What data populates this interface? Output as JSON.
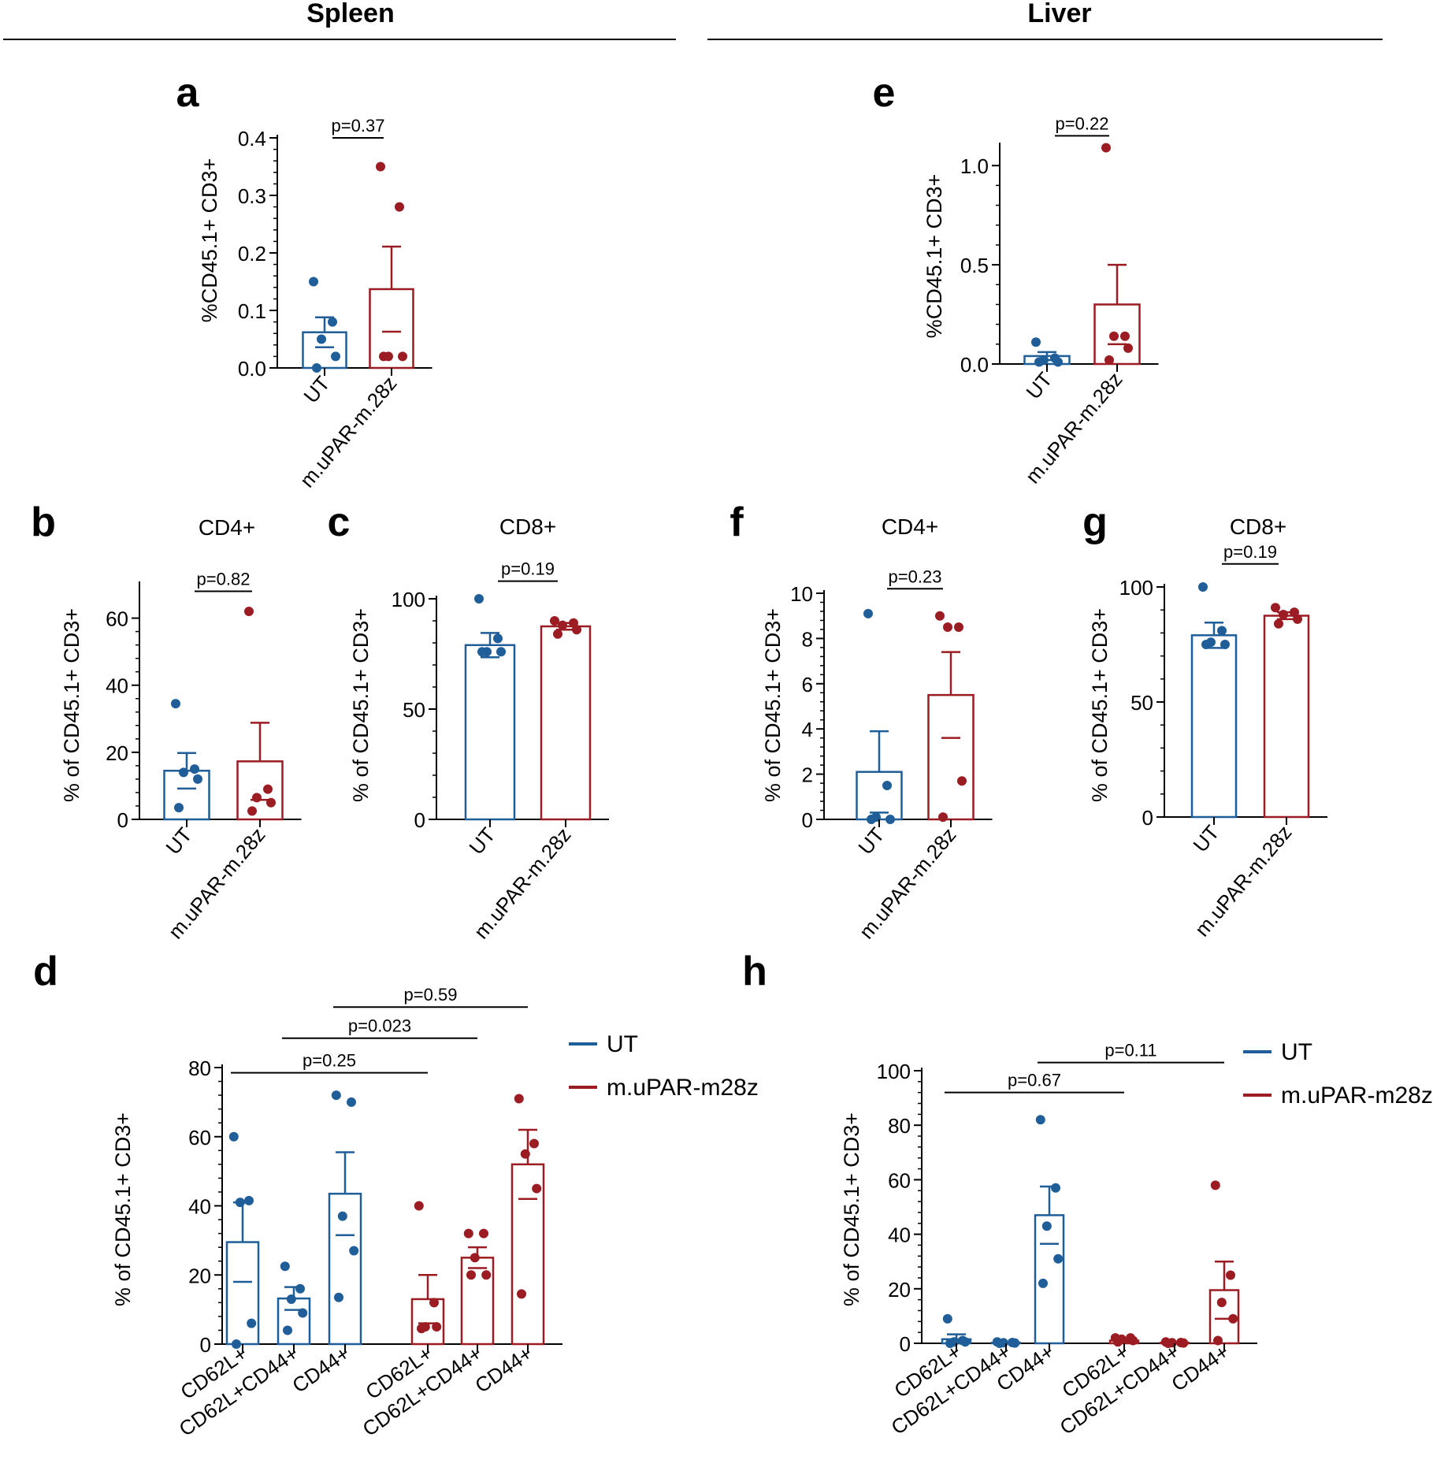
{
  "sections": {
    "spleen": "Spleen",
    "liver": "Liver"
  },
  "colors": {
    "ut": "#1f5e99",
    "car": "#9b1c22",
    "axis": "#000000"
  },
  "chart_data": [
    {
      "panel": "a",
      "type": "bar",
      "subtitle": "",
      "ylabel": "%CD45.1+ CD3+",
      "categories": [
        "UT",
        "m.uPAR-m.28z"
      ],
      "ylim": [
        0,
        0.4
      ],
      "yticks": [
        0.0,
        0.1,
        0.2,
        0.3,
        0.4
      ],
      "tick_labels": [
        "0.0",
        "0.1",
        "0.2",
        "0.3",
        "0.4"
      ],
      "series": [
        {
          "name": "UT",
          "color_key": "ut",
          "mean": 0.062,
          "sem": 0.026,
          "points": [
            0.15,
            0.08,
            0.05,
            0.02,
            0.0
          ]
        },
        {
          "name": "m.uPAR-m.28z",
          "color_key": "car",
          "mean": 0.137,
          "sem": 0.074,
          "points": [
            0.35,
            0.28,
            0.02,
            0.02,
            0.02
          ]
        }
      ],
      "pvals": [
        {
          "label": "p=0.37",
          "from": 0,
          "to": 1,
          "y": 0.4
        }
      ]
    },
    {
      "panel": "b",
      "type": "bar",
      "subtitle": "CD4+",
      "ylabel": "% of CD45.1+ CD3+",
      "categories": [
        "UT",
        "m.uPAR-m.28z"
      ],
      "ylim": [
        0,
        70
      ],
      "yticks": [
        0,
        20,
        40,
        60
      ],
      "tick_labels": [
        "0",
        "20",
        "40",
        "60"
      ],
      "series": [
        {
          "name": "UT",
          "color_key": "ut",
          "mean": 14.5,
          "sem": 5.3,
          "points": [
            34.5,
            15,
            14,
            12,
            3.5
          ]
        },
        {
          "name": "m.uPAR-m.28z",
          "color_key": "car",
          "mean": 17.3,
          "sem": 11.5,
          "points": [
            62,
            9,
            6.5,
            5,
            2.5
          ]
        }
      ],
      "pvals": [
        {
          "label": "p=0.82",
          "from": 0,
          "to": 1,
          "y": 68
        }
      ]
    },
    {
      "panel": "c",
      "type": "bar",
      "subtitle": "CD8+",
      "ylabel": "% of CD45.1+ CD3+",
      "categories": [
        "UT",
        "m.uPAR-m.28z"
      ],
      "ylim": [
        0,
        100
      ],
      "yticks": [
        0,
        50,
        100
      ],
      "tick_labels": [
        "0",
        "50",
        "100"
      ],
      "series": [
        {
          "name": "UT",
          "color_key": "ut",
          "mean": 79,
          "sem": 5.5,
          "points": [
            100,
            82,
            76,
            76,
            76
          ]
        },
        {
          "name": "m.uPAR-m.28z",
          "color_key": "car",
          "mean": 87.5,
          "sem": 1.5,
          "points": [
            90,
            89,
            88,
            86,
            84
          ]
        }
      ],
      "pvals": [
        {
          "label": "p=0.19",
          "from": 0,
          "to": 1,
          "y": 108
        }
      ]
    },
    {
      "panel": "d",
      "type": "bar",
      "subtitle": "",
      "ylabel": "% of CD45.1+ CD3+",
      "categories": [
        "CD62L+",
        "CD62L+CD44+",
        "CD44+",
        "CD62L+",
        "CD62L+CD44+",
        "CD44+"
      ],
      "ylim": [
        0,
        80
      ],
      "yticks": [
        0,
        20,
        40,
        60,
        80
      ],
      "tick_labels": [
        "0",
        "20",
        "40",
        "60",
        "80"
      ],
      "legend": [
        {
          "name": "UT",
          "color_key": "ut"
        },
        {
          "name": "m.uPAR-m28z",
          "color_key": "car"
        }
      ],
      "series": [
        {
          "name": "UT",
          "color_key": "ut",
          "bars": [
            {
              "mean": 29.5,
              "sem": 11.5,
              "points": [
                60,
                41.5,
                41,
                6,
                0
              ]
            },
            {
              "mean": 13.2,
              "sem": 3.3,
              "points": [
                22.5,
                16,
                13,
                9,
                4
              ]
            },
            {
              "mean": 43.5,
              "sem": 12,
              "points": [
                72,
                70,
                37,
                27,
                13.5
              ]
            }
          ]
        },
        {
          "name": "m.uPAR-m28z",
          "color_key": "car",
          "bars": [
            {
              "mean": 13,
              "sem": 7,
              "points": [
                40,
                12,
                5,
                5,
                4.5
              ]
            },
            {
              "mean": 25,
              "sem": 3,
              "points": [
                32,
                32,
                25,
                20,
                20
              ]
            },
            {
              "mean": 52,
              "sem": 10,
              "points": [
                71,
                58,
                55,
                45,
                14.5
              ]
            }
          ]
        }
      ],
      "pvals": [
        {
          "label": "p=0.25",
          "from": 0,
          "to": 3,
          "y": 78.5
        },
        {
          "label": "p=0.023",
          "from": 1,
          "to": 4,
          "y": 88.5
        },
        {
          "label": "p=0.59",
          "from": 2,
          "to": 5,
          "y": 97.5
        }
      ]
    },
    {
      "panel": "e",
      "type": "bar",
      "subtitle": "",
      "ylabel": "%CD45.1+ CD3+",
      "categories": [
        "UT",
        "m.uPAR-m.28z"
      ],
      "ylim": [
        0,
        1.1
      ],
      "yticks": [
        0.0,
        0.5,
        1.0
      ],
      "tick_labels": [
        "0.0",
        "0.5",
        "1.0"
      ],
      "series": [
        {
          "name": "UT",
          "color_key": "ut",
          "mean": 0.04,
          "sem": 0.02,
          "points": [
            0.11,
            0.03,
            0.02,
            0.01,
            0.01
          ]
        },
        {
          "name": "m.uPAR-m.28z",
          "color_key": "car",
          "mean": 0.3,
          "sem": 0.2,
          "points": [
            1.09,
            0.14,
            0.14,
            0.08,
            0.02
          ]
        }
      ],
      "pvals": [
        {
          "label": "p=0.22",
          "from": 0,
          "to": 1,
          "y": 1.15
        }
      ]
    },
    {
      "panel": "f",
      "type": "bar",
      "subtitle": "CD4+",
      "ylabel": "% of CD45.1+ CD3+",
      "categories": [
        "UT",
        "m.uPAR-m.28z"
      ],
      "ylim": [
        0,
        10
      ],
      "yticks": [
        0,
        2,
        4,
        6,
        8,
        10
      ],
      "tick_labels": [
        "0",
        "2",
        "4",
        "6",
        "8",
        "10"
      ],
      "series": [
        {
          "name": "UT",
          "color_key": "ut",
          "mean": 2.1,
          "sem": 1.8,
          "points": [
            9.1,
            1.5,
            0.1,
            0,
            0
          ]
        },
        {
          "name": "m.uPAR-m.28z",
          "color_key": "car",
          "mean": 5.5,
          "sem": 1.9,
          "points": [
            9,
            8.5,
            8.5,
            1.7,
            0.1
          ]
        }
      ],
      "pvals": [
        {
          "label": "p=0.23",
          "from": 0,
          "to": 1,
          "y": 10.2
        }
      ]
    },
    {
      "panel": "g",
      "type": "bar",
      "subtitle": "CD8+",
      "ylabel": "% of CD45.1+ CD3+",
      "categories": [
        "UT",
        "m.uPAR-m.28z"
      ],
      "ylim": [
        0,
        100
      ],
      "yticks": [
        0,
        50,
        100
      ],
      "tick_labels": [
        "0",
        "50",
        "100"
      ],
      "series": [
        {
          "name": "UT",
          "color_key": "ut",
          "mean": 79,
          "sem": 5.5,
          "points": [
            100,
            81,
            76,
            75,
            75
          ]
        },
        {
          "name": "m.uPAR-m.28z",
          "color_key": "car",
          "mean": 87.5,
          "sem": 1.5,
          "points": [
            91,
            89,
            88,
            86,
            84
          ]
        }
      ],
      "pvals": [
        {
          "label": "p=0.19",
          "from": 0,
          "to": 1,
          "y": 110
        }
      ]
    },
    {
      "panel": "h",
      "type": "bar",
      "subtitle": "",
      "ylabel": "% of CD45.1+ CD3+",
      "categories": [
        "CD62L+",
        "CD62L+CD44+",
        "CD44+",
        "CD62L+",
        "CD62L+CD44+",
        "CD44+"
      ],
      "ylim": [
        0,
        100
      ],
      "yticks": [
        0,
        20,
        40,
        60,
        80,
        100
      ],
      "tick_labels": [
        "0",
        "20",
        "40",
        "60",
        "80",
        "100"
      ],
      "legend": [
        {
          "name": "UT",
          "color_key": "ut"
        },
        {
          "name": "m.uPAR-m28z",
          "color_key": "car"
        }
      ],
      "series": [
        {
          "name": "UT",
          "color_key": "ut",
          "bars": [
            {
              "mean": 1.5,
              "sem": 1.8,
              "points": [
                9,
                1,
                0.5,
                0.5,
                0
              ]
            },
            {
              "mean": 0.2,
              "sem": 0.1,
              "points": [
                0.5,
                0.3,
                0.2,
                0.1,
                0
              ]
            },
            {
              "mean": 47,
              "sem": 10.5,
              "points": [
                82,
                57,
                43,
                31,
                22
              ]
            }
          ]
        },
        {
          "name": "m.uPAR-m28z",
          "color_key": "car",
          "bars": [
            {
              "mean": 1,
              "sem": 0.4,
              "points": [
                2,
                2,
                1.5,
                1,
                0.5
              ]
            },
            {
              "mean": 0.2,
              "sem": 0.1,
              "points": [
                0.5,
                0.3,
                0.2,
                0.1,
                0
              ]
            },
            {
              "mean": 19.5,
              "sem": 10.5,
              "points": [
                58,
                25,
                15,
                9,
                1
              ]
            }
          ]
        }
      ],
      "pvals": [
        {
          "label": "p=0.67",
          "from": 0,
          "to": 3,
          "y": 92
        },
        {
          "label": "p=0.11",
          "from": 2,
          "to": 5,
          "y": 103
        }
      ]
    }
  ]
}
